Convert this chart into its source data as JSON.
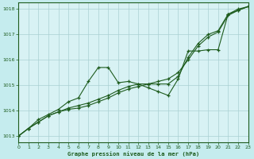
{
  "title": "Graphe pression niveau de la mer (hPa)",
  "bg_color": "#c5ecee",
  "plot_bg": "#d8f2f4",
  "line_color": "#1e5c1e",
  "grid_color": "#aad0d2",
  "border_color": "#1e5c1e",
  "xlim": [
    0,
    23
  ],
  "ylim": [
    1012.75,
    1018.25
  ],
  "yticks": [
    1013,
    1014,
    1015,
    1016,
    1017,
    1018
  ],
  "xticks": [
    0,
    1,
    2,
    3,
    4,
    5,
    6,
    7,
    8,
    9,
    10,
    11,
    12,
    13,
    14,
    15,
    16,
    17,
    18,
    19,
    20,
    21,
    22,
    23
  ],
  "series_curvy": [
    1013.0,
    1013.3,
    1013.65,
    1013.85,
    1014.05,
    1014.35,
    1014.5,
    1015.15,
    1015.7,
    1015.7,
    1015.1,
    1015.15,
    1015.05,
    1014.9,
    1014.75,
    1014.6,
    1015.25,
    1016.35,
    1016.35,
    1016.4,
    1016.4,
    1017.8,
    1017.95,
    1018.1
  ],
  "series_straight1": [
    1013.0,
    1013.3,
    1013.55,
    1013.8,
    1013.95,
    1014.05,
    1014.1,
    1014.2,
    1014.35,
    1014.5,
    1014.7,
    1014.85,
    1014.95,
    1015.05,
    1015.15,
    1015.25,
    1015.5,
    1016.0,
    1016.55,
    1016.9,
    1017.1,
    1017.75,
    1017.95,
    1018.1
  ],
  "series_straight2": [
    1013.0,
    1013.3,
    1013.55,
    1013.8,
    1013.95,
    1014.1,
    1014.2,
    1014.3,
    1014.45,
    1014.6,
    1014.8,
    1014.95,
    1015.05,
    1015.05,
    1015.05,
    1015.05,
    1015.35,
    1016.1,
    1016.65,
    1017.0,
    1017.15,
    1017.8,
    1018.0,
    1018.1
  ],
  "marker": "+"
}
